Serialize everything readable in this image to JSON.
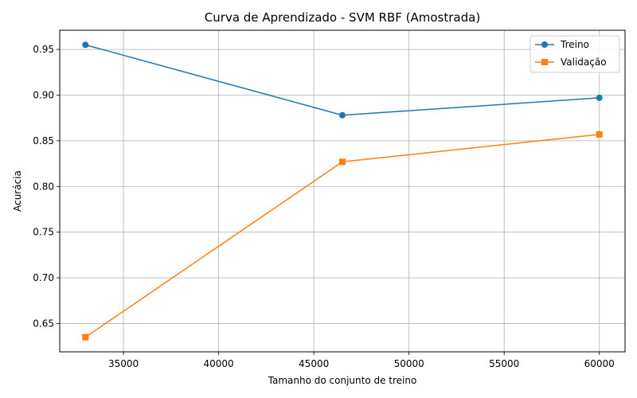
{
  "chart_data": {
    "type": "line",
    "title": "Curva de Aprendizado - SVM RBF (Amostrada)",
    "xlabel": "Tamanho do conjunto de treino",
    "ylabel": "Acurácia",
    "x": [
      33000,
      46500,
      60000
    ],
    "xlim": [
      31650,
      61350
    ],
    "ylim": [
      0.619,
      0.971
    ],
    "xticks": [
      35000,
      40000,
      45000,
      50000,
      55000,
      60000
    ],
    "xtick_labels": [
      "35000",
      "40000",
      "45000",
      "50000",
      "55000",
      "60000"
    ],
    "yticks": [
      0.65,
      0.7,
      0.75,
      0.8,
      0.85,
      0.9,
      0.95
    ],
    "ytick_labels": [
      "0.65",
      "0.70",
      "0.75",
      "0.80",
      "0.85",
      "0.90",
      "0.95"
    ],
    "grid": true,
    "legend_position": "top-right",
    "series": [
      {
        "name": "Treino",
        "values": [
          0.955,
          0.878,
          0.897
        ],
        "color": "#1f77b4",
        "marker": "circle"
      },
      {
        "name": "Validação",
        "values": [
          0.635,
          0.827,
          0.857
        ],
        "color": "#ff7f0e",
        "marker": "square"
      }
    ]
  }
}
